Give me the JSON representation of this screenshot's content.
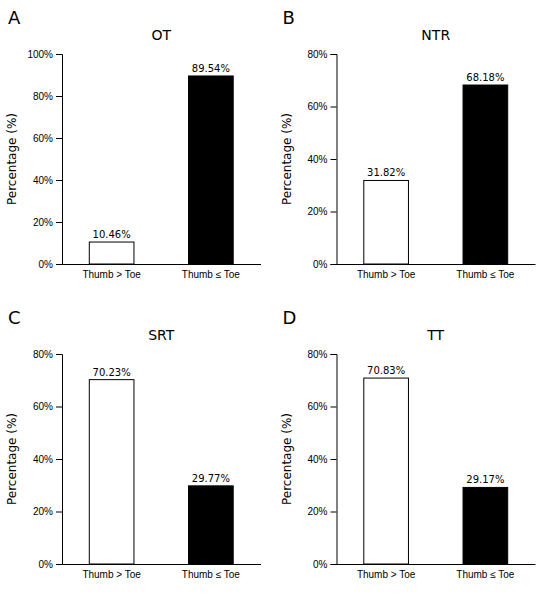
{
  "chart_data": [
    {
      "type": "bar",
      "title": "OT",
      "annotations": [
        "A"
      ],
      "y_label": "Percentage (%)",
      "categories": [
        "Thumb > Toe",
        "Thumb ≤ Toe"
      ],
      "values": [
        10.46,
        89.54
      ],
      "value_labels": [
        "10.46%",
        "89.54%"
      ],
      "data_labels": true,
      "colors": [
        "white",
        "black"
      ],
      "ylim": [
        0,
        100
      ],
      "yticks": [
        {
          "value": 0,
          "label": "0%"
        },
        {
          "value": 20,
          "label": "20%"
        },
        {
          "value": 40,
          "label": "40%"
        },
        {
          "value": 60,
          "label": "60%"
        },
        {
          "value": 80,
          "label": "80%"
        },
        {
          "value": 100,
          "label": "100%"
        }
      ],
      "grid": false
    },
    {
      "type": "bar",
      "title": "NTR",
      "annotations": [
        "B"
      ],
      "y_label": "Percentage (%)",
      "categories": [
        "Thumb > Toe",
        "Thumb ≤ Toe"
      ],
      "values": [
        31.82,
        68.18
      ],
      "value_labels": [
        "31.82%",
        "68.18%"
      ],
      "data_labels": true,
      "colors": [
        "white",
        "black"
      ],
      "ylim": [
        0,
        80
      ],
      "yticks": [
        {
          "value": 0,
          "label": "0%"
        },
        {
          "value": 20,
          "label": "20%"
        },
        {
          "value": 40,
          "label": "40%"
        },
        {
          "value": 60,
          "label": "60%"
        },
        {
          "value": 80,
          "label": "80%"
        }
      ],
      "grid": false
    },
    {
      "type": "bar",
      "title": "SRT",
      "annotations": [
        "C"
      ],
      "y_label": "Percentage (%)",
      "categories": [
        "Thumb > Toe",
        "Thumb ≤ Toe"
      ],
      "values": [
        70.23,
        29.77
      ],
      "value_labels": [
        "70.23%",
        "29.77%"
      ],
      "data_labels": true,
      "colors": [
        "white",
        "black"
      ],
      "ylim": [
        0,
        80
      ],
      "yticks": [
        {
          "value": 0,
          "label": "0%"
        },
        {
          "value": 20,
          "label": "20%"
        },
        {
          "value": 40,
          "label": "40%"
        },
        {
          "value": 60,
          "label": "60%"
        },
        {
          "value": 80,
          "label": "80%"
        }
      ],
      "grid": false
    },
    {
      "type": "bar",
      "title": "TT",
      "annotations": [
        "D"
      ],
      "y_label": "Percentage (%)",
      "categories": [
        "Thumb > Toe",
        "Thumb ≤ Toe"
      ],
      "values": [
        70.83,
        29.17
      ],
      "value_labels": [
        "70.83%",
        "29.17%"
      ],
      "data_labels": true,
      "colors": [
        "white",
        "black"
      ],
      "ylim": [
        0,
        80
      ],
      "yticks": [
        {
          "value": 0,
          "label": "0%"
        },
        {
          "value": 20,
          "label": "20%"
        },
        {
          "value": 40,
          "label": "40%"
        },
        {
          "value": 60,
          "label": "60%"
        },
        {
          "value": 80,
          "label": "80%"
        }
      ],
      "grid": false
    }
  ]
}
